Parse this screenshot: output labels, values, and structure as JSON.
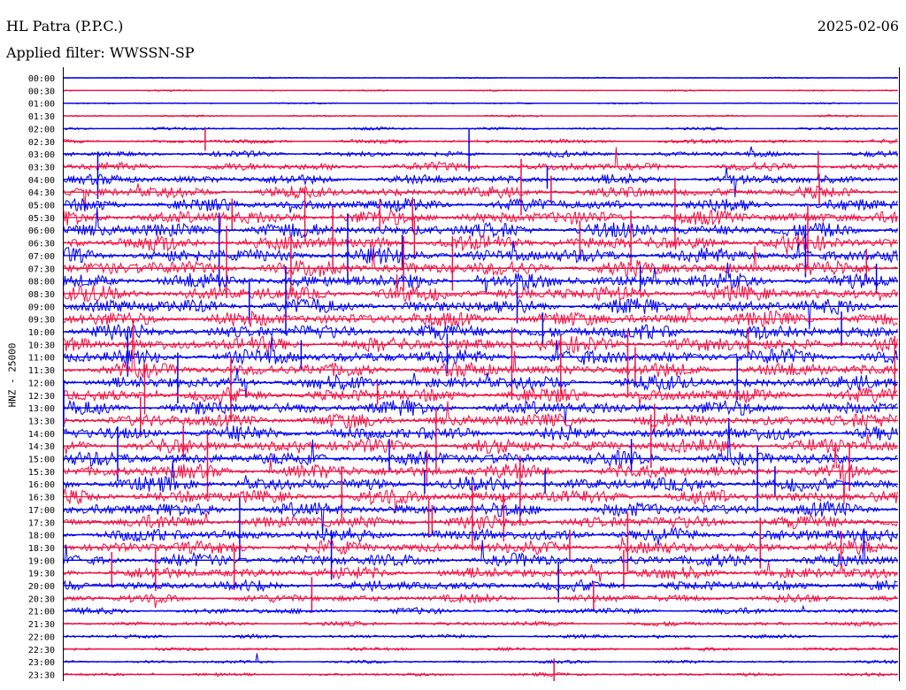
{
  "header": {
    "station": "HL Patra (P.P.C.)",
    "date": "2025-02-06",
    "filter_label": "Applied filter:",
    "filter_value": "WWSSN-SP",
    "channel_label": "HNZ - 25000"
  },
  "colors": {
    "blue_trace": "#0000ee",
    "red_trace": "#ee1144",
    "frame": "#000000",
    "background": "#ffffff"
  },
  "chart_data": {
    "type": "line",
    "title": "HL Patra (P.P.C.)",
    "subtitle": "Applied filter: WWSSN-SP",
    "xlabel": "",
    "ylabel": "HNZ - 25000",
    "grid": false,
    "legend": "none",
    "rows": [
      "00:00",
      "00:30",
      "01:00",
      "01:30",
      "02:00",
      "02:30",
      "03:00",
      "03:30",
      "04:00",
      "04:30",
      "05:00",
      "05:30",
      "06:00",
      "06:30",
      "07:00",
      "07:30",
      "08:00",
      "08:30",
      "09:00",
      "09:30",
      "10:00",
      "10:30",
      "11:00",
      "11:30",
      "12:00",
      "12:30",
      "13:00",
      "13:30",
      "14:00",
      "14:30",
      "15:00",
      "15:30",
      "16:00",
      "16:30",
      "17:00",
      "17:30",
      "18:00",
      "18:30",
      "19:00",
      "19:30",
      "20:00",
      "20:30",
      "21:00",
      "21:30",
      "22:00",
      "22:30",
      "23:00",
      "23:30"
    ],
    "row_colors": [
      "blue",
      "red"
    ],
    "relative_activity": [
      0.08,
      0.1,
      0.1,
      0.12,
      0.18,
      0.28,
      0.38,
      0.55,
      0.65,
      0.75,
      0.85,
      0.95,
      1.0,
      1.0,
      1.0,
      1.0,
      1.0,
      1.0,
      1.0,
      1.0,
      1.0,
      1.0,
      1.0,
      0.95,
      0.95,
      0.95,
      0.95,
      0.95,
      0.95,
      0.95,
      0.95,
      0.95,
      0.95,
      0.95,
      0.92,
      0.9,
      0.9,
      0.88,
      0.85,
      0.8,
      0.7,
      0.55,
      0.4,
      0.3,
      0.25,
      0.22,
      0.2,
      0.22
    ]
  }
}
